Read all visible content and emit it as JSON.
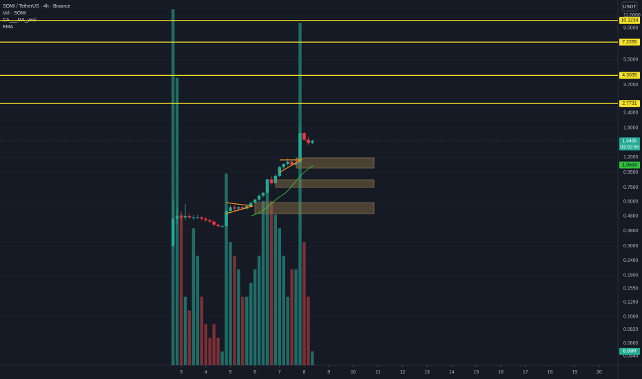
{
  "header": {
    "title": "SOMI / TetherUS · 4h · Binance",
    "indicators": [
      "Vol · SOMI",
      "CA___MA_yeni",
      "EMA"
    ],
    "currency": "USDT"
  },
  "chart_data": {
    "type": "candlestick",
    "log_scale": true,
    "up_color": "#22ab94",
    "down_color": "#f23645",
    "volume_up_color": "#1f6d66",
    "volume_down_color": "#7d2f36",
    "ylim": [
      0.0469,
      13.93
    ],
    "xlim": [
      -4.37,
      20.76
    ],
    "volume_lim": [
      0,
      160
    ],
    "yticks": [
      {
        "value": 11,
        "label": "11.0000"
      },
      {
        "value": 9,
        "label": "9.0000"
      },
      {
        "value": 5.5,
        "label": "5.5000"
      },
      {
        "value": 3.7,
        "label": "3.7000"
      },
      {
        "value": 2.4,
        "label": "2.4000"
      },
      {
        "value": 1.9,
        "label": "1.9000"
      },
      {
        "value": 1.2,
        "label": "1.2000"
      },
      {
        "value": 0.95,
        "label": "0.9500"
      },
      {
        "value": 0.75,
        "label": "0.7500"
      },
      {
        "value": 0.6,
        "label": "0.6000"
      },
      {
        "value": 0.48,
        "label": "0.4800"
      },
      {
        "value": 0.38,
        "label": "0.3800"
      },
      {
        "value": 0.3,
        "label": "0.3000"
      },
      {
        "value": 0.24,
        "label": "0.2400"
      },
      {
        "value": 0.19,
        "label": "0.1900"
      },
      {
        "value": 0.155,
        "label": "0.1550"
      },
      {
        "value": 0.125,
        "label": "0.1250"
      },
      {
        "value": 0.1,
        "label": "0.1000"
      },
      {
        "value": 0.082,
        "label": "0.0820"
      },
      {
        "value": 0.066,
        "label": "0.0660"
      },
      {
        "value": 0.054,
        "label": "0.0540"
      }
    ],
    "xticks": [
      3,
      4,
      5,
      6,
      7,
      8,
      9,
      10,
      11,
      12,
      13,
      14,
      15,
      16,
      17,
      18,
      19,
      20
    ],
    "levels": [
      {
        "value": 10.1234,
        "label": "10.1234"
      },
      {
        "value": 7.2265,
        "label": "7.2265"
      },
      {
        "value": 4.3035,
        "label": "4.3035"
      },
      {
        "value": 2.7731,
        "label": "2.7731"
      }
    ],
    "level_color": "#f5e425",
    "last_price": {
      "value": 1.5495,
      "label": "1.5495",
      "countdown": "03:02:55"
    },
    "ema_price": {
      "value": 1.0634,
      "label": "1.0634"
    },
    "x": [
      2.667,
      2.833,
      3,
      3.167,
      3.333,
      3.5,
      3.667,
      3.833,
      4,
      4.167,
      4.333,
      4.5,
      4.667,
      4.833,
      5,
      5.167,
      5.333,
      5.5,
      5.667,
      5.833,
      6,
      6.167,
      6.333,
      6.5,
      6.667,
      6.833,
      7,
      7.167,
      7.333,
      7.5,
      7.667,
      7.833,
      8,
      8.167,
      8.333
    ],
    "open": [
      0.3,
      0.46,
      0.48,
      0.47,
      0.48,
      0.47,
      0.47,
      0.47,
      0.46,
      0.45,
      0.44,
      0.42,
      0.41,
      0.41,
      0.52,
      0.55,
      0.54,
      0.55,
      0.54,
      0.56,
      0.59,
      0.62,
      0.66,
      0.69,
      0.85,
      0.8,
      0.9,
      1.03,
      1.08,
      1.12,
      1.07,
      1.1,
      1.75,
      1.58,
      1.5
    ],
    "high": [
      0.62,
      0.55,
      0.52,
      0.58,
      0.5,
      0.49,
      0.49,
      0.48,
      0.47,
      0.46,
      0.45,
      0.43,
      0.42,
      0.53,
      0.57,
      0.57,
      0.56,
      0.56,
      0.58,
      0.6,
      0.63,
      0.67,
      0.7,
      0.86,
      0.9,
      0.92,
      1.05,
      1.1,
      1.18,
      1.15,
      1.18,
      1.95,
      1.78,
      1.65,
      1.58
    ],
    "low": [
      0.3,
      0.42,
      0.45,
      0.45,
      0.46,
      0.45,
      0.46,
      0.45,
      0.44,
      0.43,
      0.41,
      0.4,
      0.4,
      0.41,
      0.5,
      0.52,
      0.52,
      0.53,
      0.53,
      0.55,
      0.57,
      0.6,
      0.64,
      0.68,
      0.78,
      0.78,
      0.88,
      1.0,
      1.05,
      1.05,
      1.05,
      1.09,
      1.55,
      1.45,
      1.48
    ],
    "close": [
      0.46,
      0.48,
      0.47,
      0.48,
      0.47,
      0.47,
      0.47,
      0.46,
      0.45,
      0.44,
      0.42,
      0.41,
      0.41,
      0.52,
      0.55,
      0.54,
      0.55,
      0.54,
      0.56,
      0.59,
      0.62,
      0.66,
      0.69,
      0.85,
      0.8,
      0.9,
      1.03,
      1.08,
      1.12,
      1.07,
      1.1,
      1.75,
      1.58,
      1.5,
      1.55
    ],
    "volume": [
      156,
      126,
      66,
      30,
      24,
      60,
      48,
      30,
      18,
      12,
      18,
      12,
      6,
      84,
      54,
      48,
      42,
      30,
      30,
      36,
      42,
      48,
      72,
      78,
      72,
      66,
      60,
      48,
      30,
      42,
      42,
      150,
      54,
      30,
      6.09
    ],
    "volume_value_labels": {
      "34": "6.09M"
    }
  }
}
